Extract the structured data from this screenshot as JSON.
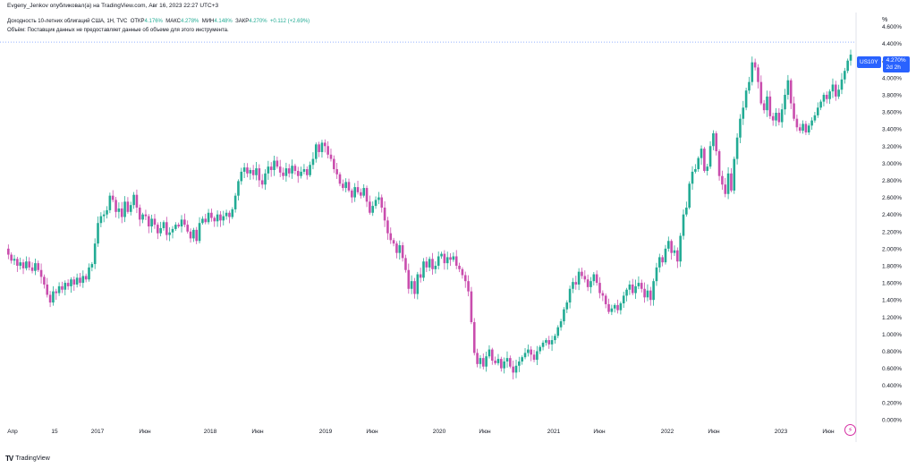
{
  "header": {
    "publisher": "Evgeny_Jenkov опубликовал(а) на TradingView.com, Авг 16, 2023 22:27 UTC+3"
  },
  "legend": {
    "title": "Доходность 10-летних облигаций США, 1Н, TVC",
    "open_label": "ОТКР",
    "open_value": "4.176%",
    "high_label": "МАКС",
    "high_value": "4.278%",
    "low_label": "МИН",
    "low_value": "4.148%",
    "close_label": "ЗАКР",
    "close_value": "4.270%",
    "change": "+0.112 (+2.69%)",
    "volume_note": "Объём: Поставщик данных не предоставляет данные об объеме для этого инструмента."
  },
  "price_scale_unit": "%",
  "price_tag": {
    "symbol": "US10Y",
    "value": "4.270%",
    "countdown": "2d 2h"
  },
  "logo_text": "TradingView",
  "colors": {
    "up": "#22ab94",
    "down": "#c94dad",
    "price_line": "#2962ff",
    "axis_text": "#131722"
  },
  "chart_data": {
    "type": "candlestick",
    "ylim": [
      -0.2,
      4.7
    ],
    "y_ticks": [
      "4.600%",
      "4.400%",
      "4.200%",
      "4.000%",
      "3.800%",
      "3.600%",
      "3.400%",
      "3.200%",
      "3.000%",
      "2.800%",
      "2.600%",
      "2.400%",
      "2.200%",
      "2.000%",
      "1.800%",
      "1.600%",
      "1.400%",
      "1.200%",
      "1.000%",
      "0.800%",
      "0.600%",
      "0.400%",
      "0.200%",
      "0.000%"
    ],
    "y_tick_values": [
      4.6,
      4.4,
      4.2,
      4.0,
      3.8,
      3.6,
      3.4,
      3.2,
      3.0,
      2.8,
      2.6,
      2.4,
      2.2,
      2.0,
      1.8,
      1.6,
      1.4,
      1.2,
      1.0,
      0.8,
      0.6,
      0.4,
      0.2,
      0.0
    ],
    "x_ticks": [
      "Апр",
      "15",
      "2017",
      "Июн",
      "2018",
      "Июн",
      "2019",
      "Июн",
      "2020",
      "Июн",
      "2021",
      "Июн",
      "2022",
      "Июн",
      "2023",
      "Июн"
    ],
    "last_close": 4.27,
    "series": [
      2.0,
      1.93,
      1.86,
      1.88,
      1.8,
      1.84,
      1.77,
      1.85,
      1.78,
      1.74,
      1.83,
      1.75,
      1.67,
      1.58,
      1.46,
      1.37,
      1.5,
      1.48,
      1.56,
      1.52,
      1.6,
      1.56,
      1.64,
      1.58,
      1.66,
      1.6,
      1.68,
      1.64,
      1.78,
      1.82,
      2.06,
      2.3,
      2.38,
      2.4,
      2.45,
      2.62,
      2.57,
      2.43,
      2.47,
      2.37,
      2.55,
      2.43,
      2.51,
      2.63,
      2.48,
      2.34,
      2.4,
      2.38,
      2.26,
      2.35,
      2.28,
      2.18,
      2.24,
      2.31,
      2.16,
      2.19,
      2.23,
      2.28,
      2.26,
      2.34,
      2.28,
      2.2,
      2.12,
      2.22,
      2.09,
      2.3,
      2.35,
      2.31,
      2.42,
      2.36,
      2.32,
      2.4,
      2.33,
      2.38,
      2.42,
      2.37,
      2.46,
      2.62,
      2.79,
      2.9,
      2.95,
      2.88,
      2.92,
      2.86,
      2.94,
      2.8,
      2.75,
      2.88,
      2.96,
      2.92,
      3.03,
      2.96,
      2.89,
      2.85,
      2.94,
      2.88,
      2.97,
      2.91,
      2.85,
      2.9,
      2.93,
      2.86,
      2.98,
      3.05,
      3.22,
      3.13,
      3.24,
      3.2,
      3.1,
      3.05,
      2.93,
      2.87,
      2.76,
      2.71,
      2.78,
      2.68,
      2.6,
      2.72,
      2.66,
      2.62,
      2.71,
      2.55,
      2.42,
      2.5,
      2.57,
      2.6,
      2.48,
      2.33,
      2.18,
      2.1,
      2.06,
      1.95,
      2.04,
      1.89,
      1.75,
      1.53,
      1.62,
      1.47,
      1.7,
      1.66,
      1.85,
      1.78,
      1.88,
      1.76,
      1.8,
      1.91,
      1.94,
      1.83,
      1.9,
      1.87,
      1.91,
      1.8,
      1.76,
      1.69,
      1.62,
      1.5,
      1.14,
      0.78,
      0.65,
      0.72,
      0.62,
      0.74,
      0.82,
      0.69,
      0.66,
      0.71,
      0.6,
      0.68,
      0.72,
      0.62,
      0.55,
      0.63,
      0.68,
      0.73,
      0.78,
      0.82,
      0.76,
      0.7,
      0.8,
      0.85,
      0.9,
      0.93,
      0.88,
      0.93,
      0.98,
      1.08,
      1.15,
      1.29,
      1.37,
      1.53,
      1.61,
      1.58,
      1.73,
      1.68,
      1.64,
      1.55,
      1.62,
      1.7,
      1.6,
      1.48,
      1.45,
      1.35,
      1.26,
      1.3,
      1.34,
      1.28,
      1.36,
      1.45,
      1.52,
      1.58,
      1.48,
      1.56,
      1.6,
      1.53,
      1.43,
      1.51,
      1.4,
      1.62,
      1.78,
      1.9,
      1.84,
      2.0,
      2.09,
      1.95,
      1.98,
      1.85,
      2.15,
      2.4,
      2.48,
      2.76,
      2.9,
      2.93,
      3.06,
      3.17,
      2.91,
      2.96,
      3.2,
      3.35,
      3.14,
      2.85,
      2.75,
      2.64,
      2.88,
      2.68,
      3.05,
      3.3,
      3.52,
      3.65,
      3.85,
      3.95,
      4.18,
      4.12,
      3.95,
      3.7,
      3.62,
      3.78,
      3.55,
      3.5,
      3.59,
      3.48,
      3.63,
      3.8,
      3.97,
      3.7,
      3.52,
      3.42,
      3.38,
      3.46,
      3.36,
      3.44,
      3.5,
      3.56,
      3.65,
      3.72,
      3.8,
      3.75,
      3.84,
      3.92,
      3.78,
      3.86,
      3.98,
      4.08,
      4.2,
      4.27
    ]
  }
}
